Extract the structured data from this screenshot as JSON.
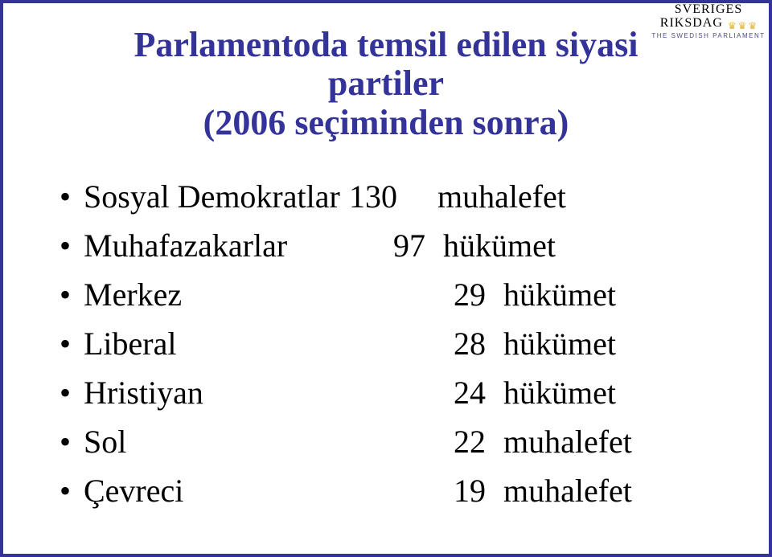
{
  "logo": {
    "line1": "SVERIGES",
    "line2": "RIKSDAG",
    "sub": "THE SWEDISH PARLIAMENT",
    "crown_glyph": "♛"
  },
  "title": {
    "line1": "Parlamentoda temsil edilen siyasi",
    "line2": "partiler",
    "line3": "(2006 seçiminden sonra)"
  },
  "bullet_glyph": "•",
  "rows": [
    {
      "party": "Sosyal Demokratlar",
      "seats": "130",
      "status": "muhalefet"
    },
    {
      "party": "Muhafazakarlar",
      "seats": "97",
      "status": "hükümet"
    },
    {
      "party": "Merkez",
      "seats": "29",
      "status": "hükümet"
    },
    {
      "party": "Liberal",
      "seats": "28",
      "status": "hükümet"
    },
    {
      "party": "Hristiyan",
      "seats": "24",
      "status": "hükümet"
    },
    {
      "party": "Sol",
      "seats": "22",
      "status": "muhalefet"
    },
    {
      "party": "Çevreci",
      "seats": "19",
      "status": "muhalefet"
    }
  ],
  "colors": {
    "border": "#333399",
    "title": "#333399",
    "text": "#000000",
    "background": "#ffffff"
  },
  "typography": {
    "title_fontsize_pt": 33,
    "body_fontsize_pt": 30,
    "font_family": "Times New Roman"
  }
}
